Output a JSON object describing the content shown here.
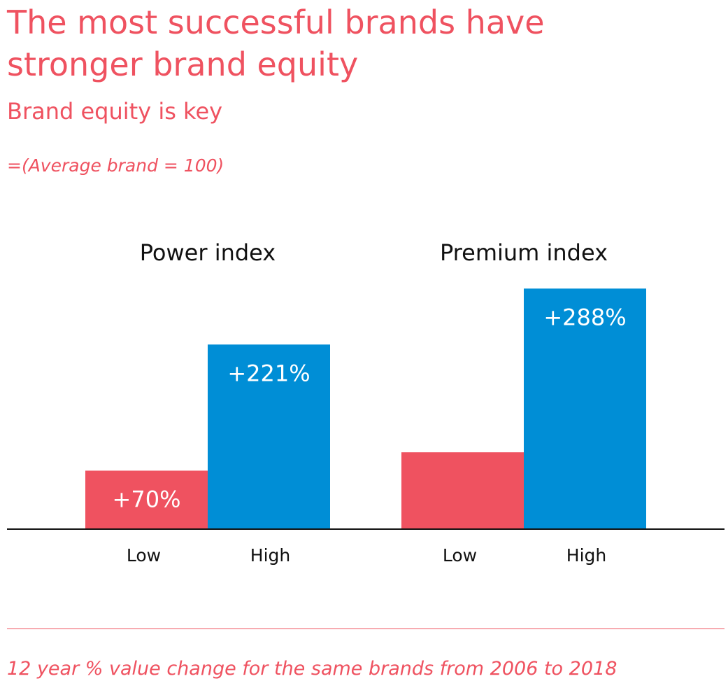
{
  "header": {
    "title_line1": "The most successful brands have",
    "title_line2": "stronger brand equity",
    "subtitle": "Brand equity is key",
    "note": "=(Average brand = 100)"
  },
  "footer": {
    "caption": "12 year % value change for the same brands from 2006 to 2018"
  },
  "chart_data": {
    "type": "bar",
    "title": "",
    "xlabel": "",
    "ylabel": "",
    "ylim": [
      0,
      300
    ],
    "grid": false,
    "legend": "none",
    "groups": [
      {
        "name": "Power index",
        "bars": [
          {
            "category": "Low",
            "value": 70,
            "label": "+70%",
            "color": "#ef5260"
          },
          {
            "category": "High",
            "value": 221,
            "label": "+221%",
            "color": "#008ed6"
          }
        ]
      },
      {
        "name": "Premium index",
        "bars": [
          {
            "category": "Low",
            "value": 92,
            "label": "",
            "color": "#ef5260"
          },
          {
            "category": "High",
            "value": 288,
            "label": "+288%",
            "color": "#008ed6"
          }
        ]
      }
    ]
  }
}
